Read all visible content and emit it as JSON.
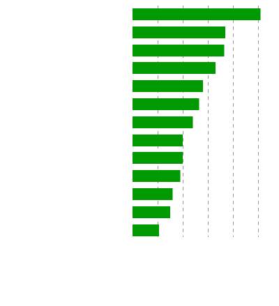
{
  "chart_data": {
    "type": "bar",
    "orientation": "horizontal",
    "title": "",
    "xlabel": "",
    "ylabel": "",
    "categories": [
      "",
      "",
      "",
      "",
      "",
      "",
      "",
      "",
      "",
      "",
      "",
      "",
      ""
    ],
    "values": [
      51,
      37,
      36.5,
      33,
      28,
      26.5,
      24,
      20,
      20,
      19,
      16,
      15,
      10.5
    ],
    "xlim": [
      0,
      55
    ],
    "gridlines": [
      10,
      20,
      30,
      40,
      50
    ],
    "grid": true,
    "legend": "none",
    "colors": {
      "bar": "#009900",
      "grid": "#9a9a9a",
      "background": "#ffffff"
    }
  }
}
